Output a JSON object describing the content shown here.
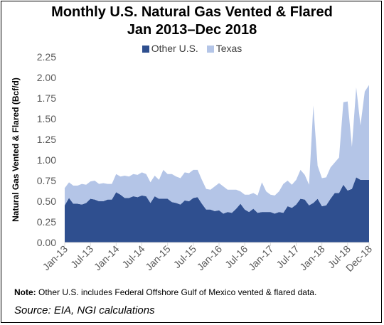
{
  "chart_data": {
    "type": "area",
    "stacked": true,
    "title": "Monthly U.S. Natural Gas Vented & Flared",
    "subtitle": "Jan 2013–Dec 2018",
    "ylabel": "Natural Gas Vented & Flared (Bcf/d)",
    "xlabel": "",
    "ylim": [
      0,
      2.25
    ],
    "yticks": [
      "0.00",
      "0.25",
      "0.50",
      "0.75",
      "1.00",
      "1.25",
      "1.50",
      "1.75",
      "2.00",
      "2.25"
    ],
    "x_start": "Jan-13",
    "x_end": "Dec-18",
    "xticks": [
      {
        "label": "Jan-13",
        "index": 0
      },
      {
        "label": "Jul-13",
        "index": 6
      },
      {
        "label": "Jan-14",
        "index": 12
      },
      {
        "label": "Jul-14",
        "index": 18
      },
      {
        "label": "Jan-15",
        "index": 24
      },
      {
        "label": "Jul-15",
        "index": 30
      },
      {
        "label": "Jan-16",
        "index": 36
      },
      {
        "label": "Jul-16",
        "index": 42
      },
      {
        "label": "Jan-17",
        "index": 48
      },
      {
        "label": "Jul-17",
        "index": 54
      },
      {
        "label": "Jan-18",
        "index": 60
      },
      {
        "label": "Jul-18",
        "index": 66
      },
      {
        "label": "Dec-18",
        "index": 71
      }
    ],
    "grid": false,
    "legend": "top",
    "series": [
      {
        "name": "Other U.S.",
        "color": "#2f4f8f",
        "values": [
          0.45,
          0.54,
          0.47,
          0.47,
          0.46,
          0.48,
          0.53,
          0.52,
          0.5,
          0.5,
          0.52,
          0.52,
          0.61,
          0.58,
          0.54,
          0.54,
          0.56,
          0.55,
          0.57,
          0.56,
          0.48,
          0.56,
          0.53,
          0.53,
          0.53,
          0.49,
          0.48,
          0.46,
          0.51,
          0.5,
          0.54,
          0.55,
          0.47,
          0.4,
          0.4,
          0.38,
          0.39,
          0.35,
          0.37,
          0.36,
          0.41,
          0.47,
          0.4,
          0.37,
          0.41,
          0.36,
          0.37,
          0.37,
          0.37,
          0.35,
          0.37,
          0.36,
          0.44,
          0.42,
          0.46,
          0.53,
          0.52,
          0.45,
          0.48,
          0.53,
          0.44,
          0.45,
          0.53,
          0.6,
          0.6,
          0.7,
          0.63,
          0.65,
          0.79,
          0.76,
          0.76,
          0.76
        ]
      },
      {
        "name": "Texas",
        "color": "#b4c5e7",
        "values": [
          0.21,
          0.19,
          0.22,
          0.22,
          0.25,
          0.22,
          0.21,
          0.23,
          0.21,
          0.22,
          0.19,
          0.19,
          0.22,
          0.22,
          0.27,
          0.26,
          0.27,
          0.27,
          0.28,
          0.27,
          0.25,
          0.25,
          0.23,
          0.35,
          0.3,
          0.34,
          0.32,
          0.32,
          0.34,
          0.34,
          0.34,
          0.33,
          0.29,
          0.25,
          0.24,
          0.3,
          0.33,
          0.33,
          0.27,
          0.28,
          0.23,
          0.15,
          0.18,
          0.21,
          0.19,
          0.21,
          0.36,
          0.25,
          0.21,
          0.22,
          0.25,
          0.35,
          0.31,
          0.28,
          0.3,
          0.35,
          0.3,
          0.25,
          1.18,
          0.4,
          0.34,
          0.34,
          0.38,
          0.37,
          0.43,
          1.0,
          1.08,
          0.51,
          1.09,
          0.66,
          1.07,
          1.15
        ]
      }
    ]
  },
  "note": {
    "prefix": "Note:",
    "text": " Other U.S. includes Federal Offshore Gulf of Mexico vented & flared data."
  },
  "source": "Source: EIA, NGI calculations"
}
